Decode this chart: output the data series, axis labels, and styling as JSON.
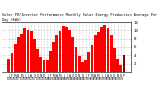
{
  "title": "Solar PV/Inverter Performance Monthly Solar Energy Production Average Per Day (KWh)",
  "bar_color": "#ff0000",
  "dark_bar_color": "#880000",
  "background_color": "#ffffff",
  "plot_bg_color": "#ffffff",
  "grid_color": "#aaaaaa",
  "categories": [
    "J\n'07",
    "F\n'07",
    "M\n'07",
    "A\n'07",
    "M\n'07",
    "J\n'07",
    "J\n'07",
    "A\n'07",
    "S\n'07",
    "O\n'07",
    "N\n'07",
    "D\n'07",
    "J\n'08",
    "F\n'08",
    "M\n'08",
    "A\n'08",
    "M\n'08",
    "J\n'08",
    "J\n'08",
    "A\n'08",
    "S\n'08",
    "O\n'08",
    "N\n'08",
    "D\n'08",
    "J\n'09",
    "F\n'09",
    "M\n'09",
    "A\n'09",
    "M\n'09",
    "J\n'09",
    "J\n'09",
    "A\n'09",
    "S\n'09",
    "O\n'09",
    "N\n'09",
    "D\n'09",
    "P"
  ],
  "values": [
    3.2,
    4.5,
    6.8,
    8.5,
    9.2,
    10.5,
    10.2,
    9.8,
    8.0,
    5.5,
    3.5,
    2.8,
    3.0,
    5.0,
    7.2,
    9.0,
    9.8,
    11.0,
    10.8,
    10.2,
    8.5,
    6.0,
    3.8,
    2.5,
    2.8,
    4.8,
    6.5,
    8.8,
    9.5,
    10.8,
    11.2,
    10.5,
    8.8,
    5.8,
    3.2,
    1.8,
    4.2
  ],
  "ylim": [
    0,
    12
  ],
  "yticks": [
    2,
    4,
    6,
    8,
    10,
    12
  ],
  "figsize": [
    1.6,
    1.0
  ],
  "dpi": 100
}
